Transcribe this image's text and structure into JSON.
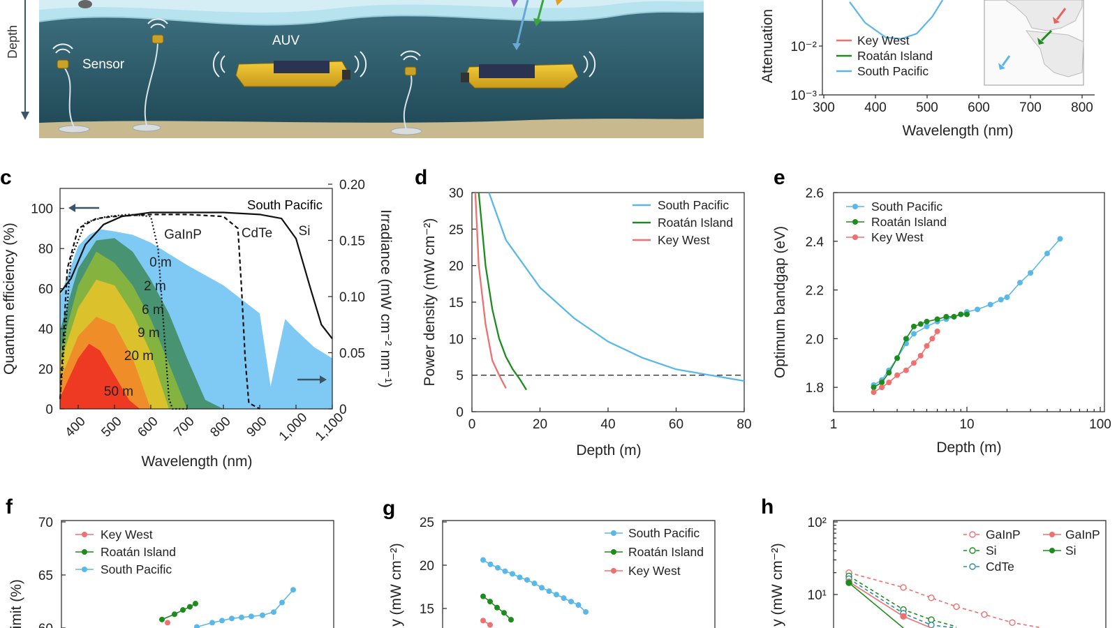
{
  "panels": {
    "a": {
      "depth_label": "Depth",
      "sensor_label": "Sensor",
      "auv_label": "AUV"
    },
    "b": {
      "letter": "",
      "ylabel": "Attenuation",
      "xlabel": "Wavelength (nm)"
    },
    "c": {
      "letter": "c",
      "ylabel_left": "Quantum efficiency (%)",
      "ylabel_right": "Irradiance (mW cm⁻² nm⁻¹)",
      "xlabel": "Wavelength (nm)",
      "title_label": "South Pacific"
    },
    "d": {
      "letter": "d",
      "ylabel": "Power density (mW cm⁻²)",
      "xlabel": "Depth (m)"
    },
    "e": {
      "letter": "e",
      "ylabel": "Optimum bandgap (eV)",
      "xlabel": "Depth (m)"
    },
    "f": {
      "letter": "f",
      "ylabel": "limit (%)"
    },
    "g": {
      "letter": "g",
      "ylabel": "y (mW cm⁻²)"
    },
    "h": {
      "letter": "h",
      "ylabel": "y (mW cm⁻²)"
    }
  },
  "colors": {
    "south_pacific": "#5ab8e8",
    "roatan": "#1c8c1c",
    "key_west": "#ee7070",
    "sky": "#7fcaf5",
    "ocean": "#2a5c6c"
  },
  "chart_data": [
    {
      "id": "b",
      "type": "line",
      "ylabel": "Attenuation",
      "xlabel": "Wavelength (nm)",
      "xlim": [
        300,
        800
      ],
      "xticks": [
        "300",
        "400",
        "500",
        "600",
        "700",
        "800"
      ],
      "yscale": "log",
      "yticks": [
        "10⁻³",
        "10⁻²"
      ],
      "legend": [
        "Key West",
        "Roatán Island",
        "South Pacific"
      ],
      "series": [
        {
          "name": "South Pacific",
          "x": [
            350,
            380,
            420,
            450,
            480,
            510,
            530
          ],
          "y": [
            0.08,
            0.03,
            0.015,
            0.014,
            0.018,
            0.04,
            0.09
          ]
        }
      ]
    },
    {
      "id": "c",
      "type": "area",
      "xlabel": "Wavelength (nm)",
      "ylabel": "Quantum efficiency (%)",
      "ylabel_right": "Irradiance (mW cm⁻² nm⁻¹)",
      "xlim": [
        350,
        1100
      ],
      "ylim": [
        0,
        110
      ],
      "ylim_right": [
        0,
        0.2
      ],
      "xticks": [
        "400",
        "500",
        "600",
        "700",
        "800",
        "900",
        "1,000",
        "1,100"
      ],
      "yticks": [
        "0",
        "20",
        "40",
        "60",
        "80",
        "100"
      ],
      "yticks_right": [
        "0",
        "0.05",
        "0.10",
        "0.15",
        "0.20"
      ],
      "depth_labels": [
        "0 m",
        "2 m",
        "6 m",
        "9 m",
        "20 m",
        "50 m"
      ],
      "qe_labels": [
        "GaInP",
        "CdTe",
        "Si"
      ],
      "qe_series": [
        {
          "name": "GaInP",
          "x": [
            350,
            380,
            420,
            480,
            540,
            600,
            620,
            640,
            650,
            660,
            700
          ],
          "y": [
            5,
            75,
            93,
            96,
            97,
            96,
            80,
            30,
            5,
            0,
            0
          ]
        },
        {
          "name": "CdTe",
          "x": [
            350,
            370,
            400,
            450,
            500,
            600,
            700,
            800,
            840,
            850,
            860,
            870,
            900
          ],
          "y": [
            5,
            70,
            90,
            95,
            96,
            97,
            97,
            96,
            90,
            60,
            25,
            3,
            0
          ]
        },
        {
          "name": "Si",
          "x": [
            350,
            380,
            420,
            470,
            520,
            600,
            700,
            800,
            900,
            960,
            1000,
            1040,
            1070,
            1100
          ],
          "y": [
            58,
            65,
            82,
            92,
            96,
            98,
            98,
            98,
            97,
            95,
            85,
            60,
            42,
            35
          ]
        }
      ],
      "irradiance_series": [
        {
          "name": "0 m",
          "x": [
            350,
            400,
            430,
            460,
            500,
            550,
            600,
            700,
            800,
            900,
            930,
            970,
            1000,
            1050,
            1100
          ],
          "y": [
            0.1,
            0.145,
            0.155,
            0.16,
            0.158,
            0.155,
            0.148,
            0.128,
            0.11,
            0.085,
            0.02,
            0.08,
            0.07,
            0.055,
            0.045
          ]
        },
        {
          "name": "2 m",
          "x": [
            350,
            400,
            450,
            500,
            550,
            600,
            650,
            700,
            750,
            800
          ],
          "y": [
            0.07,
            0.125,
            0.15,
            0.152,
            0.14,
            0.115,
            0.085,
            0.045,
            0.008,
            0
          ]
        },
        {
          "name": "6 m",
          "x": [
            350,
            400,
            450,
            500,
            550,
            600,
            650,
            700
          ],
          "y": [
            0.05,
            0.11,
            0.14,
            0.13,
            0.11,
            0.08,
            0.04,
            0
          ]
        },
        {
          "name": "9 m",
          "x": [
            350,
            400,
            450,
            500,
            550,
            600,
            650
          ],
          "y": [
            0.04,
            0.09,
            0.115,
            0.11,
            0.085,
            0.05,
            0
          ]
        },
        {
          "name": "20 m",
          "x": [
            350,
            400,
            450,
            500,
            550,
            600
          ],
          "y": [
            0.025,
            0.065,
            0.082,
            0.075,
            0.045,
            0
          ]
        },
        {
          "name": "50 m",
          "x": [
            350,
            400,
            430,
            460,
            500,
            540,
            570
          ],
          "y": [
            0.01,
            0.045,
            0.058,
            0.052,
            0.03,
            0.008,
            0
          ]
        }
      ]
    },
    {
      "id": "d",
      "type": "line",
      "xlabel": "Depth (m)",
      "ylabel": "Power density (mW cm⁻²)",
      "xlim": [
        0,
        80
      ],
      "ylim": [
        0,
        30
      ],
      "xticks": [
        "0",
        "20",
        "40",
        "60",
        "80"
      ],
      "yticks": [
        "0",
        "5",
        "10",
        "15",
        "20",
        "25",
        "30"
      ],
      "threshold": 5,
      "series": [
        {
          "name": "South Pacific",
          "x": [
            5,
            10,
            20,
            30,
            40,
            50,
            60,
            70,
            80
          ],
          "y": [
            30,
            23.5,
            17,
            12.8,
            9.6,
            7.4,
            5.8,
            5,
            4.2
          ]
        },
        {
          "name": "Roatán Island",
          "x": [
            2,
            4,
            6,
            8,
            10,
            12,
            14,
            16
          ],
          "y": [
            30,
            20,
            14,
            10,
            7.5,
            5.8,
            4.5,
            3
          ]
        },
        {
          "name": "Key West",
          "x": [
            1,
            2,
            4,
            6,
            8,
            10
          ],
          "y": [
            30,
            20,
            12,
            7,
            5,
            3.2
          ]
        }
      ]
    },
    {
      "id": "e",
      "type": "scatter",
      "xlabel": "Depth (m)",
      "ylabel": "Optimum bandgap (eV)",
      "xscale": "log",
      "xlim": [
        1,
        100
      ],
      "ylim": [
        1.7,
        2.6
      ],
      "xticks": [
        "1",
        "10",
        "100"
      ],
      "yticks": [
        "1.8",
        "2.0",
        "2.2",
        "2.4",
        "2.6"
      ],
      "series": [
        {
          "name": "South Pacific",
          "x": [
            2,
            2.3,
            2.6,
            3,
            3.5,
            4,
            5,
            6,
            7,
            8,
            9,
            10,
            12,
            15,
            18,
            20,
            25,
            30,
            40,
            50
          ],
          "y": [
            1.81,
            1.83,
            1.87,
            1.92,
            1.98,
            2.02,
            2.05,
            2.07,
            2.08,
            2.09,
            2.1,
            2.11,
            2.12,
            2.14,
            2.16,
            2.17,
            2.23,
            2.27,
            2.35,
            2.41
          ]
        },
        {
          "name": "Roatán Island",
          "x": [
            2,
            2.3,
            2.6,
            3,
            3.5,
            4,
            4.5,
            5,
            6,
            7,
            8,
            9,
            10
          ],
          "y": [
            1.8,
            1.82,
            1.86,
            1.92,
            2.0,
            2.05,
            2.06,
            2.07,
            2.08,
            2.09,
            2.09,
            2.1,
            2.1
          ]
        },
        {
          "name": "Key West",
          "x": [
            2,
            2.3,
            2.6,
            3,
            3.5,
            4,
            4.5,
            5,
            5.5,
            6
          ],
          "y": [
            1.78,
            1.8,
            1.82,
            1.85,
            1.87,
            1.9,
            1.93,
            1.97,
            2.0,
            2.03
          ]
        }
      ]
    },
    {
      "id": "f",
      "type": "scatter",
      "ylabel": "limit (%)",
      "ylim_visible": [
        60,
        70
      ],
      "yticks": [
        "60",
        "65",
        "70"
      ],
      "legend": [
        "Key West",
        "Roatán Island",
        "South Pacific"
      ],
      "series": [
        {
          "name": "Roatán Island",
          "x": [
            1,
            2,
            3,
            4,
            5
          ],
          "y": [
            60.8,
            61.3,
            61.7,
            62.0,
            62.3
          ]
        },
        {
          "name": "South Pacific",
          "x": [
            1,
            2,
            3,
            4,
            5,
            6,
            7,
            8,
            9,
            10
          ],
          "y": [
            60.1,
            60.5,
            60.7,
            60.9,
            61.0,
            61.1,
            61.2,
            61.5,
            62.4,
            63.6
          ]
        },
        {
          "name": "Key West",
          "x": [
            0
          ],
          "y": [
            60.5
          ]
        }
      ]
    },
    {
      "id": "g",
      "type": "scatter",
      "ylabel": "y (mW cm⁻²)",
      "ylim_visible": [
        13,
        25
      ],
      "yticks": [
        "15",
        "20",
        "25"
      ],
      "series": [
        {
          "name": "South Pacific",
          "x": [
            0,
            1,
            2,
            3,
            4,
            5,
            6,
            7,
            8,
            9,
            10,
            11,
            12,
            13,
            14
          ],
          "y": [
            20.6,
            20.1,
            19.7,
            19.3,
            19.0,
            18.6,
            18.3,
            17.9,
            17.4,
            17.0,
            16.6,
            16.2,
            15.8,
            15.4,
            14.6
          ]
        },
        {
          "name": "Roatán Island",
          "x": [
            0,
            1,
            2,
            3,
            4
          ],
          "y": [
            16.4,
            15.8,
            15.1,
            14.5,
            13.7
          ]
        },
        {
          "name": "Key West",
          "x": [
            0,
            1
          ],
          "y": [
            13.6,
            13.1
          ]
        }
      ]
    },
    {
      "id": "h",
      "type": "line",
      "ylabel": "y (mW cm⁻²)",
      "yscale": "log",
      "yticks": [
        "10¹",
        "10²"
      ],
      "legend_dashed": [
        "GaInP",
        "Si",
        "CdTe"
      ],
      "legend_solid": [
        "GaInP",
        "Si"
      ],
      "series": [
        {
          "name": "GaInP",
          "style": "dashed",
          "x": [
            0,
            1,
            2,
            3,
            4,
            5,
            6
          ],
          "y": [
            20,
            12.5,
            9.0,
            6.8,
            5.3,
            4.1,
            3.5
          ]
        },
        {
          "name": "Si",
          "style": "dashed",
          "x": [
            0,
            1,
            2,
            3
          ],
          "y": [
            18,
            6.2,
            4.5,
            3.6
          ]
        },
        {
          "name": "CdTe",
          "style": "dashed",
          "x": [
            0,
            1,
            2,
            3
          ],
          "y": [
            16.5,
            5.5,
            3.8,
            3.1
          ]
        },
        {
          "name": "GaInP",
          "style": "solid",
          "x": [
            0,
            1,
            2
          ],
          "y": [
            15,
            5.0,
            3.3
          ]
        },
        {
          "name": "Si",
          "style": "solid",
          "x": [
            0,
            1
          ],
          "y": [
            14.5,
            3.0
          ]
        }
      ]
    }
  ]
}
